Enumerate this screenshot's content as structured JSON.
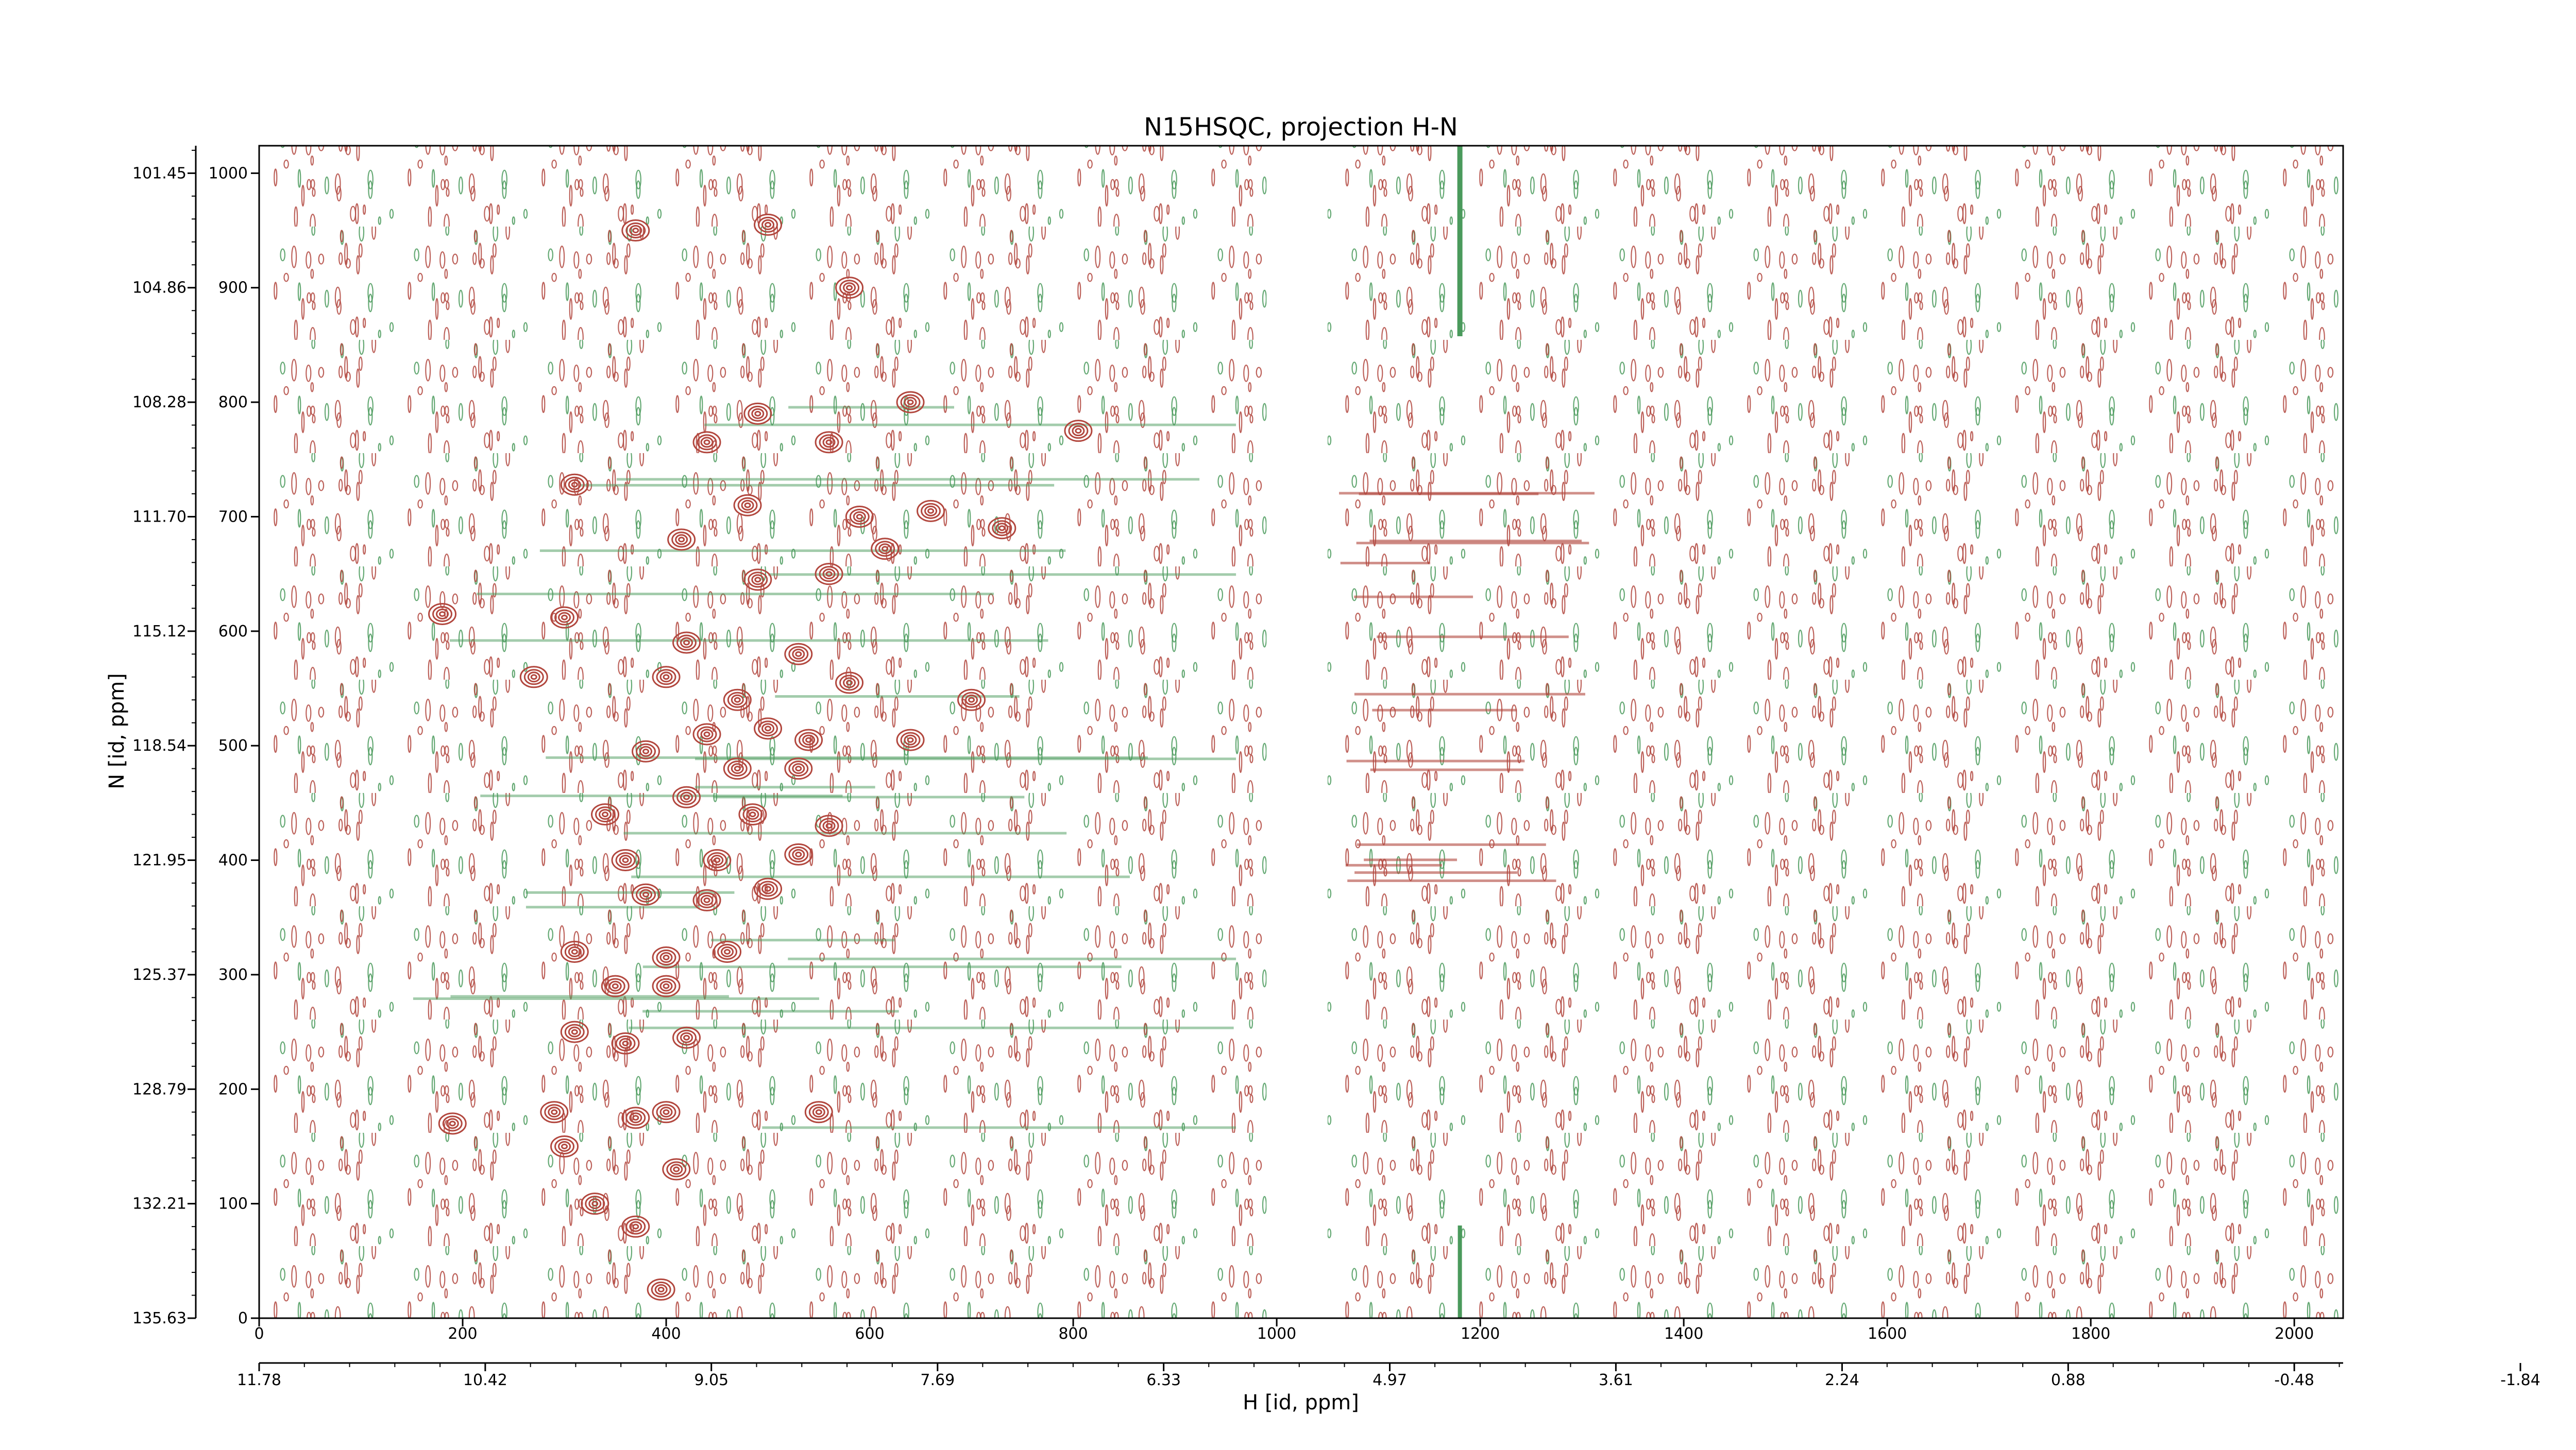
{
  "chart_data": {
    "type": "heatmap",
    "subtype": "2D NMR contour plot (positive and negative contour levels)",
    "title": "N15HSQC, projection H-N",
    "xlabel": "H [id, ppm]",
    "ylabel": "N [id, ppm]",
    "x_points_axis": {
      "range": [
        0,
        2048
      ],
      "ticks": [
        0,
        200,
        400,
        600,
        800,
        1000,
        1200,
        1400,
        1600,
        1800,
        2000
      ],
      "tick_labels": [
        "0",
        "200",
        "400",
        "600",
        "800",
        "1000",
        "1200",
        "1400",
        "1600",
        "1800",
        "2000"
      ]
    },
    "x_ppm_axis": {
      "ticks": [
        0,
        222.2,
        444.4,
        666.7,
        888.9,
        1111.1,
        1333.3,
        1555.6,
        1777.8,
        2000.0,
        2222.2
      ],
      "tick_labels": [
        "11.78",
        "10.42",
        "9.05",
        "7.69",
        "6.33",
        "4.97",
        "3.61",
        "2.24",
        "0.88",
        "-0.48",
        "-1.84"
      ]
    },
    "y_points_axis": {
      "range": [
        0,
        1024
      ],
      "ticks": [
        0,
        100,
        200,
        300,
        400,
        500,
        600,
        700,
        800,
        900,
        1000
      ],
      "tick_labels": [
        "0",
        "100",
        "200",
        "300",
        "400",
        "500",
        "600",
        "700",
        "800",
        "900",
        "1000"
      ]
    },
    "y_ppm_axis": {
      "ticks": [
        0,
        100,
        200,
        300,
        400,
        500,
        600,
        700,
        800,
        900,
        1000
      ],
      "tick_labels": [
        "135.63",
        "132.21",
        "128.79",
        "125.37",
        "121.95",
        "118.54",
        "115.12",
        "111.70",
        "108.28",
        "104.86",
        "101.45"
      ]
    },
    "series": [
      {
        "name": "",
        "sign": "positive",
        "color": "#b2473e"
      },
      {
        "name": "",
        "sign": "negative",
        "color": "#4a9a5c"
      }
    ],
    "features": {
      "water_band_points": [
        990,
        1050
      ],
      "vertical_artifact_points": 1180,
      "peak_region_points": [
        150,
        800
      ],
      "peaks": [
        {
          "x": 370,
          "y": 950
        },
        {
          "x": 500,
          "y": 955
        },
        {
          "x": 580,
          "y": 900
        },
        {
          "x": 640,
          "y": 800
        },
        {
          "x": 490,
          "y": 790
        },
        {
          "x": 440,
          "y": 765
        },
        {
          "x": 560,
          "y": 765
        },
        {
          "x": 805,
          "y": 775
        },
        {
          "x": 310,
          "y": 728
        },
        {
          "x": 480,
          "y": 710
        },
        {
          "x": 590,
          "y": 700
        },
        {
          "x": 660,
          "y": 705
        },
        {
          "x": 730,
          "y": 690
        },
        {
          "x": 415,
          "y": 680
        },
        {
          "x": 615,
          "y": 672
        },
        {
          "x": 490,
          "y": 645
        },
        {
          "x": 560,
          "y": 650
        },
        {
          "x": 180,
          "y": 615
        },
        {
          "x": 300,
          "y": 612
        },
        {
          "x": 420,
          "y": 590
        },
        {
          "x": 530,
          "y": 580
        },
        {
          "x": 270,
          "y": 560
        },
        {
          "x": 400,
          "y": 560
        },
        {
          "x": 470,
          "y": 540
        },
        {
          "x": 580,
          "y": 555
        },
        {
          "x": 700,
          "y": 540
        },
        {
          "x": 440,
          "y": 510
        },
        {
          "x": 500,
          "y": 515
        },
        {
          "x": 540,
          "y": 505
        },
        {
          "x": 640,
          "y": 505
        },
        {
          "x": 380,
          "y": 495
        },
        {
          "x": 470,
          "y": 480
        },
        {
          "x": 530,
          "y": 480
        },
        {
          "x": 420,
          "y": 455
        },
        {
          "x": 340,
          "y": 440
        },
        {
          "x": 485,
          "y": 440
        },
        {
          "x": 560,
          "y": 430
        },
        {
          "x": 360,
          "y": 400
        },
        {
          "x": 450,
          "y": 400
        },
        {
          "x": 530,
          "y": 405
        },
        {
          "x": 380,
          "y": 370
        },
        {
          "x": 440,
          "y": 365
        },
        {
          "x": 500,
          "y": 375
        },
        {
          "x": 310,
          "y": 320
        },
        {
          "x": 400,
          "y": 315
        },
        {
          "x": 460,
          "y": 320
        },
        {
          "x": 350,
          "y": 290
        },
        {
          "x": 400,
          "y": 290
        },
        {
          "x": 310,
          "y": 250
        },
        {
          "x": 360,
          "y": 240
        },
        {
          "x": 420,
          "y": 245
        },
        {
          "x": 190,
          "y": 170
        },
        {
          "x": 290,
          "y": 180
        },
        {
          "x": 370,
          "y": 175
        },
        {
          "x": 400,
          "y": 180
        },
        {
          "x": 550,
          "y": 180
        },
        {
          "x": 300,
          "y": 150
        },
        {
          "x": 410,
          "y": 130
        },
        {
          "x": 330,
          "y": 100
        },
        {
          "x": 370,
          "y": 80
        },
        {
          "x": 395,
          "y": 25
        }
      ]
    },
    "grid": false,
    "legend": "none"
  }
}
